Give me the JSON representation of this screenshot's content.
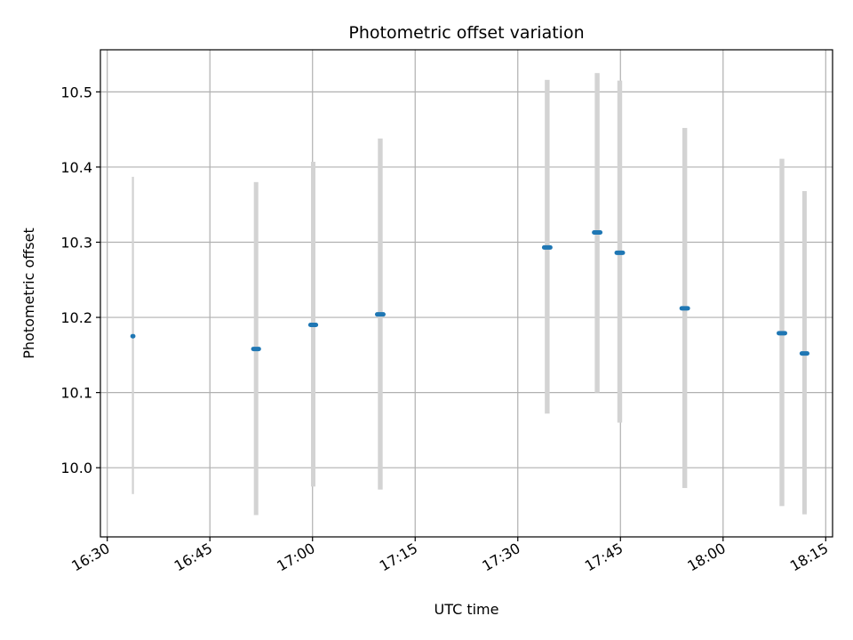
{
  "chart_data": {
    "type": "scatter",
    "title": "Photometric offset variation",
    "xlabel": "UTC time",
    "ylabel": "Photometric offset",
    "x_ticks": [
      "16:30",
      "16:45",
      "17:00",
      "17:15",
      "17:30",
      "17:45",
      "18:00",
      "18:15"
    ],
    "x_tick_values": [
      "16:30",
      "16:45",
      "17:00",
      "17:15",
      "17:30",
      "17:45",
      "18:00",
      "18:15"
    ],
    "y_ticks": [
      "10.0",
      "10.1",
      "10.2",
      "10.3",
      "10.4",
      "10.5"
    ],
    "y_tick_values": [
      10.0,
      10.1,
      10.2,
      10.3,
      10.4,
      10.5
    ],
    "xlim": [
      "16:29",
      "18:16"
    ],
    "ylim": [
      9.908,
      10.556
    ],
    "grid": true,
    "series": [
      {
        "color": "#1f77b4",
        "error_bar_color": "#d3d3d3",
        "points": [
          {
            "time": "16:33.75",
            "y": 10.175,
            "ylow": 9.965,
            "yhigh": 10.387,
            "x_halfwidth_min": 0.05,
            "bar_width_min": 0.3
          },
          {
            "time": "16:51.75",
            "y": 10.158,
            "ylow": 9.937,
            "yhigh": 10.38,
            "x_halfwidth_min": 0.4,
            "bar_width_min": 0.65
          },
          {
            "time": "17:00.1",
            "y": 10.19,
            "ylow": 9.975,
            "yhigh": 10.407,
            "x_halfwidth_min": 0.4,
            "bar_width_min": 0.65
          },
          {
            "time": "17:09.9",
            "y": 10.204,
            "ylow": 9.971,
            "yhigh": 10.438,
            "x_halfwidth_min": 0.45,
            "bar_width_min": 0.7
          },
          {
            "time": "17:34.3",
            "y": 10.293,
            "ylow": 10.072,
            "yhigh": 10.516,
            "x_halfwidth_min": 0.45,
            "bar_width_min": 0.7
          },
          {
            "time": "17:41.6",
            "y": 10.313,
            "ylow": 10.1,
            "yhigh": 10.525,
            "x_halfwidth_min": 0.45,
            "bar_width_min": 0.7
          },
          {
            "time": "17:44.9",
            "y": 10.286,
            "ylow": 10.06,
            "yhigh": 10.515,
            "x_halfwidth_min": 0.45,
            "bar_width_min": 0.7
          },
          {
            "time": "17:54.4",
            "y": 10.212,
            "ylow": 9.973,
            "yhigh": 10.452,
            "x_halfwidth_min": 0.45,
            "bar_width_min": 0.7
          },
          {
            "time": "18:08.6",
            "y": 10.179,
            "ylow": 9.949,
            "yhigh": 10.411,
            "x_halfwidth_min": 0.45,
            "bar_width_min": 0.7
          },
          {
            "time": "18:11.9",
            "y": 10.152,
            "ylow": 9.938,
            "yhigh": 10.368,
            "x_halfwidth_min": 0.4,
            "bar_width_min": 0.65
          }
        ]
      }
    ]
  }
}
